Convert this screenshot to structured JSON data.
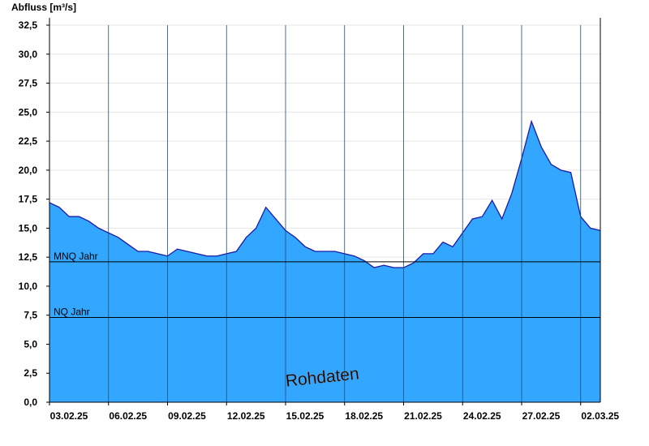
{
  "chart_data": {
    "type": "area",
    "y_label": "Abfluss [m³/s]",
    "watermark": "Rohdaten",
    "x": [
      0,
      0.5,
      1,
      1.5,
      2,
      2.5,
      3,
      3.5,
      4,
      4.5,
      5,
      5.5,
      6,
      6.5,
      7,
      7.5,
      8,
      8.5,
      9,
      9.5,
      10,
      10.5,
      11,
      11.5,
      12,
      12.5,
      13,
      13.5,
      14,
      14.5,
      15,
      15.5,
      16,
      16.5,
      17,
      17.5,
      18,
      18.5,
      19,
      19.5,
      20,
      20.5,
      21,
      21.5,
      22,
      22.5,
      23,
      23.5,
      24,
      24.5,
      25,
      25.5,
      26,
      26.5,
      27,
      27.5,
      28
    ],
    "series": [
      {
        "name": "Abfluss",
        "color": "#33a6ff",
        "line_color": "#1a1aa6",
        "values": [
          17.2,
          16.8,
          16.0,
          16.0,
          15.6,
          15.0,
          14.6,
          14.2,
          13.6,
          13.0,
          13.0,
          12.8,
          12.6,
          13.2,
          13.0,
          12.8,
          12.6,
          12.6,
          12.8,
          13.0,
          14.2,
          15.0,
          16.8,
          15.8,
          14.8,
          14.2,
          13.4,
          13.0,
          13.0,
          13.0,
          12.8,
          12.6,
          12.2,
          11.6,
          11.8,
          11.6,
          11.6,
          12.0,
          12.8,
          12.8,
          13.8,
          13.4,
          14.6,
          15.8,
          16.0,
          17.4,
          15.8,
          18.0,
          21.0,
          24.2,
          22.0,
          20.5,
          20.0,
          19.8,
          16.0,
          15.0,
          14.8
        ]
      }
    ],
    "xlim": [
      0,
      28
    ],
    "xticks": [
      {
        "value": 0,
        "label": "03.02.25"
      },
      {
        "value": 3,
        "label": "06.02.25"
      },
      {
        "value": 6,
        "label": "09.02.25"
      },
      {
        "value": 9,
        "label": "12.02.25"
      },
      {
        "value": 12,
        "label": "15.02.25"
      },
      {
        "value": 15,
        "label": "18.02.25"
      },
      {
        "value": 18,
        "label": "21.02.25"
      },
      {
        "value": 21,
        "label": "24.02.25"
      },
      {
        "value": 24,
        "label": "27.02.25"
      },
      {
        "value": 27,
        "label": "02.03.25"
      }
    ],
    "ylim": [
      0,
      32.5
    ],
    "yticks": [
      {
        "value": 0,
        "label": "0,0"
      },
      {
        "value": 2.5,
        "label": "2,5"
      },
      {
        "value": 5,
        "label": "5,0"
      },
      {
        "value": 7.5,
        "label": "7,5"
      },
      {
        "value": 10,
        "label": "10,0"
      },
      {
        "value": 12.5,
        "label": "12,5"
      },
      {
        "value": 15,
        "label": "15,0"
      },
      {
        "value": 17.5,
        "label": "17,5"
      },
      {
        "value": 20,
        "label": "20,0"
      },
      {
        "value": 22.5,
        "label": "22,5"
      },
      {
        "value": 25,
        "label": "25,0"
      },
      {
        "value": 27.5,
        "label": "27,5"
      },
      {
        "value": 30,
        "label": "30,0"
      },
      {
        "value": 32.5,
        "label": "32,5"
      }
    ],
    "reference_lines": [
      {
        "label": "MNQ Jahr",
        "value": 12.1
      },
      {
        "label": "NQ Jahr",
        "value": 7.3
      }
    ],
    "grid": true
  }
}
